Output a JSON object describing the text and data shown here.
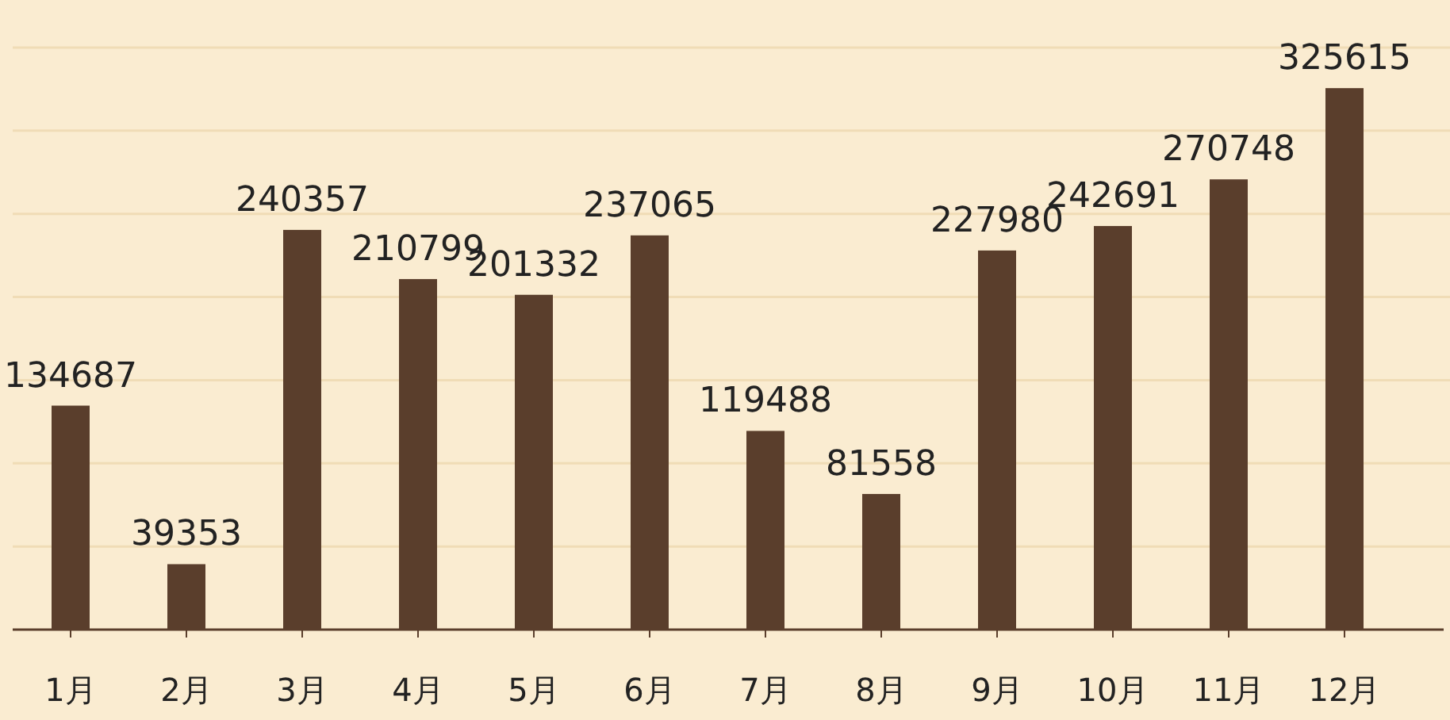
{
  "chart_data": {
    "type": "bar",
    "categories": [
      "1月",
      "2月",
      "3月",
      "4月",
      "5月",
      "6月",
      "7月",
      "8月",
      "9月",
      "10月",
      "11月",
      "12月"
    ],
    "values": [
      134687,
      39353,
      240357,
      210799,
      201332,
      237065,
      119488,
      81558,
      227980,
      242691,
      270748,
      325615
    ],
    "color": "#5a3e2c",
    "ylim": [
      0,
      350000
    ],
    "yticks": [
      {
        "value": 0,
        "label": null
      },
      {
        "value": 50000,
        "label": null
      },
      {
        "value": 100000,
        "label": null
      },
      {
        "value": 150000,
        "label": null
      },
      {
        "value": 200000,
        "label": null
      },
      {
        "value": 250000,
        "label": null
      },
      {
        "value": 300000,
        "label": null
      },
      {
        "value": 350000,
        "label": null
      }
    ],
    "grid": "y",
    "data_labels": true,
    "tick_labels": "x"
  }
}
